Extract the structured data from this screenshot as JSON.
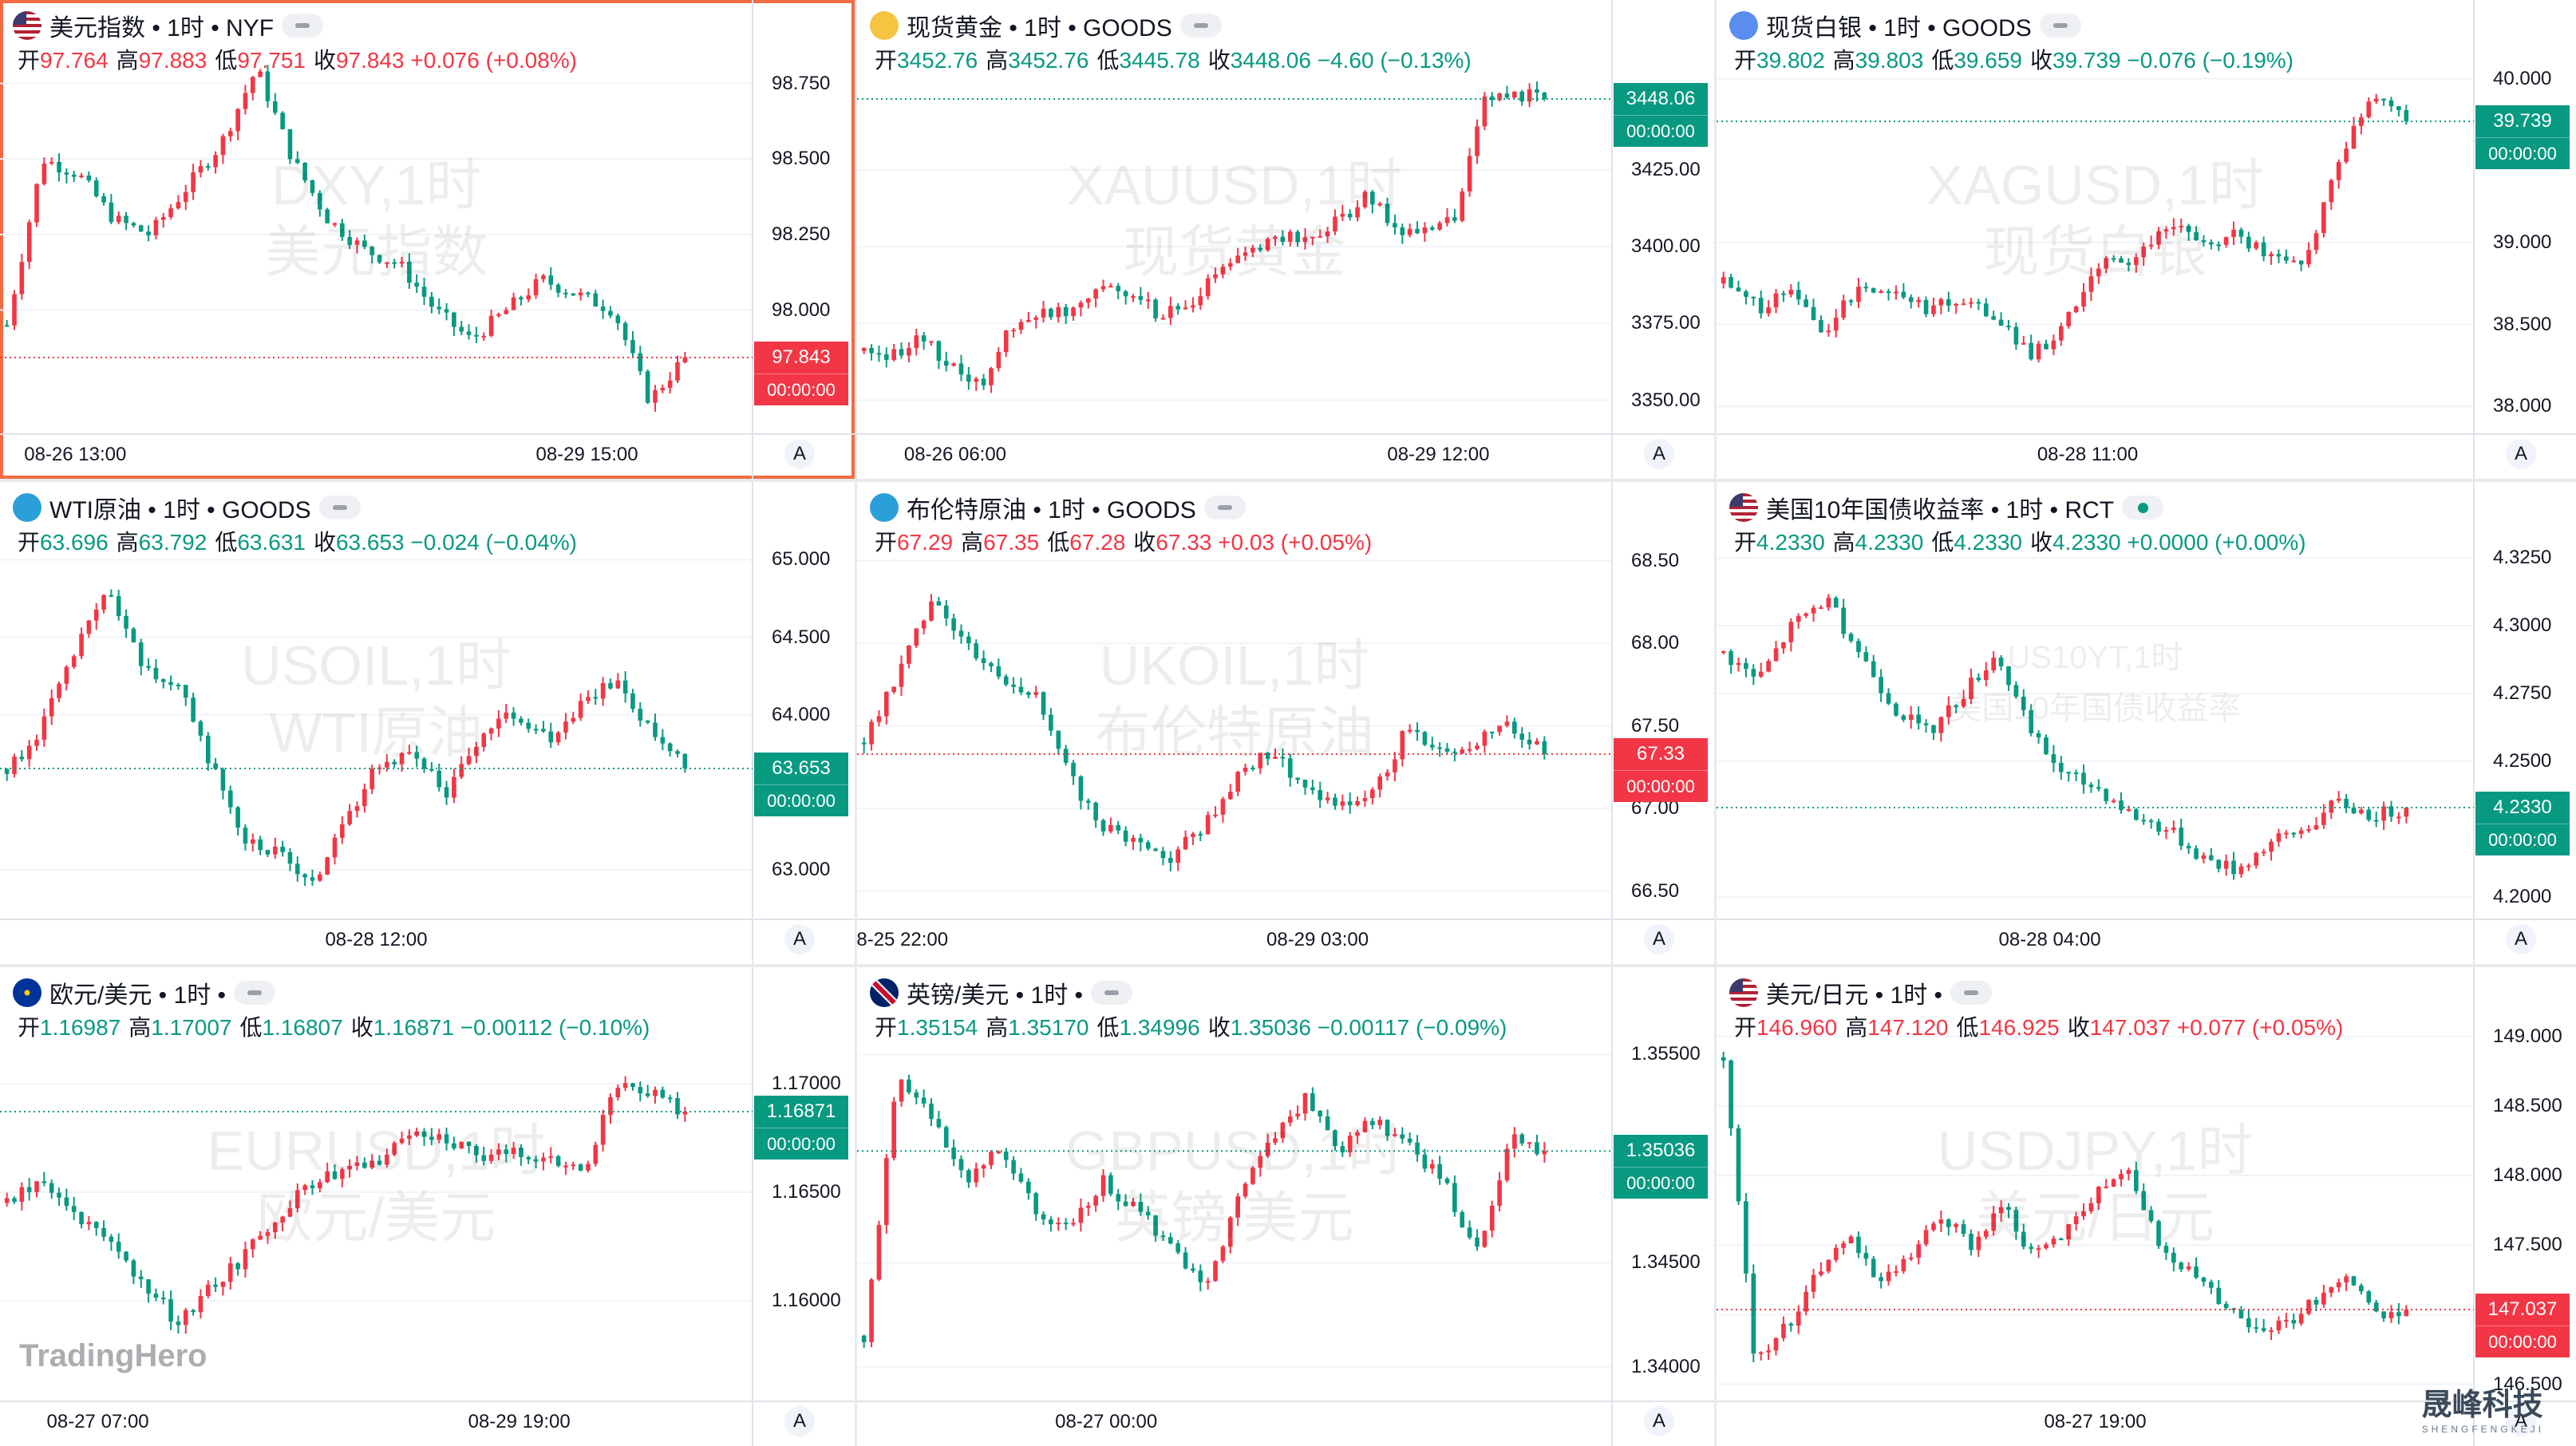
{
  "colors": {
    "up": "#f23645",
    "down": "#089981",
    "grid": "#f0f3fa",
    "axis": "#e0e3eb",
    "active_border": "#f26b43"
  },
  "brand": {
    "logo_text": "TradingHero",
    "corner_name": "晟峰科技",
    "corner_sub": "SHENGFENGKEJI"
  },
  "auto_label": "A",
  "panels": [
    {
      "id": "dxy",
      "title": "美元指数 • 1时 • NYF",
      "flag": "us",
      "status": "idle",
      "active": true,
      "ohlc": [
        {
          "l": "开",
          "v": "97.764",
          "d": "up"
        },
        {
          "l": "高",
          "v": "97.883",
          "d": "up"
        },
        {
          "l": "低",
          "v": "97.751",
          "d": "up"
        },
        {
          "l": "收",
          "v": "97.843",
          "d": "up"
        },
        {
          "l": "",
          "v": "+0.076 (+0.08%)",
          "d": "up"
        }
      ],
      "watermark": [
        "DXY,1时",
        "美元指数"
      ],
      "yticks": [
        "98.750",
        "98.500",
        "98.250",
        "98.000"
      ],
      "ytick_vals": [
        98.75,
        98.5,
        98.25,
        98.0
      ],
      "ymin": 97.6,
      "ymax": 98.82,
      "price_tag": {
        "price": "97.843",
        "time": "00:00:00",
        "dir": "up",
        "value": 97.843
      },
      "xlabels": [
        {
          "t": "08-26 13:00",
          "f": 0.1
        },
        {
          "t": "08-29 15:00",
          "f": 0.78
        }
      ],
      "series_seed": [
        97.95,
        98.5,
        98.45,
        98.3,
        98.25,
        98.4,
        98.55,
        98.8,
        98.5,
        98.3,
        98.2,
        98.15,
        98.0,
        97.9,
        98.0,
        98.1,
        98.05,
        98.0,
        97.7,
        97.843
      ],
      "show_logo": false
    },
    {
      "id": "xau",
      "title": "现货黄金 • 1时 • GOODS",
      "flag": "gold",
      "status": "idle",
      "active": false,
      "ohlc": [
        {
          "l": "开",
          "v": "3452.76",
          "d": "dn"
        },
        {
          "l": "高",
          "v": "3452.76",
          "d": "dn"
        },
        {
          "l": "低",
          "v": "3445.78",
          "d": "dn"
        },
        {
          "l": "收",
          "v": "3448.06",
          "d": "dn"
        },
        {
          "l": "",
          "v": "−4.60 (−0.13%)",
          "d": "dn"
        }
      ],
      "watermark": [
        "XAUUSD,1时",
        "现货黄金"
      ],
      "yticks": [
        "3425.00",
        "3400.00",
        "3375.00",
        "3350.00"
      ],
      "ytick_vals": [
        3425,
        3400,
        3375,
        3350
      ],
      "ymin": 3340,
      "ymax": 3460,
      "price_tag": {
        "price": "3448.06",
        "time": "00:00:00",
        "dir": "dn",
        "value": 3448.06
      },
      "xlabels": [
        {
          "t": "08-26 06:00",
          "f": 0.13
        },
        {
          "t": "08-29 12:00",
          "f": 0.77
        }
      ],
      "series_seed": [
        3366,
        3365,
        3370,
        3360,
        3355,
        3375,
        3378,
        3380,
        3388,
        3385,
        3378,
        3380,
        3392,
        3398,
        3404,
        3402,
        3408,
        3416,
        3406,
        3404,
        3410,
        3448,
        3450,
        3448.06
      ],
      "show_logo": false
    },
    {
      "id": "xag",
      "title": "现货白银 • 1时 • GOODS",
      "flag": "silver",
      "status": "idle",
      "active": false,
      "ohlc": [
        {
          "l": "开",
          "v": "39.802",
          "d": "dn"
        },
        {
          "l": "高",
          "v": "39.803",
          "d": "dn"
        },
        {
          "l": "低",
          "v": "39.659",
          "d": "dn"
        },
        {
          "l": "收",
          "v": "39.739",
          "d": "dn"
        },
        {
          "l": "",
          "v": "−0.076 (−0.19%)",
          "d": "dn"
        }
      ],
      "watermark": [
        "XAGUSD,1时",
        "现货白银"
      ],
      "yticks": [
        "40.000",
        "39.000",
        "38.500",
        "38.000"
      ],
      "ytick_vals": [
        40,
        39,
        38.5,
        38
      ],
      "ymin": 37.85,
      "ymax": 40.1,
      "price_tag": {
        "price": "39.739",
        "time": "00:00:00",
        "dir": "dn",
        "value": 39.739
      },
      "xlabels": [
        {
          "t": "08-28 11:00",
          "f": 0.49
        }
      ],
      "series_seed": [
        38.75,
        38.6,
        38.7,
        38.45,
        38.75,
        38.7,
        38.6,
        38.65,
        38.55,
        38.3,
        38.5,
        38.85,
        38.9,
        39.1,
        39.0,
        39.05,
        38.9,
        38.85,
        39.5,
        39.9,
        39.739
      ],
      "show_logo": false
    },
    {
      "id": "usoil",
      "title": "WTI原油 • 1时 • GOODS",
      "flag": "oil",
      "status": "idle",
      "active": false,
      "ohlc": [
        {
          "l": "开",
          "v": "63.696",
          "d": "dn"
        },
        {
          "l": "高",
          "v": "63.792",
          "d": "dn"
        },
        {
          "l": "低",
          "v": "63.631",
          "d": "dn"
        },
        {
          "l": "收",
          "v": "63.653",
          "d": "dn"
        },
        {
          "l": "",
          "v": "−0.024 (−0.04%)",
          "d": "dn"
        }
      ],
      "watermark": [
        "USOIL,1时",
        "WTI原油"
      ],
      "yticks": [
        "65.000",
        "64.500",
        "64.000",
        "63.000"
      ],
      "ytick_vals": [
        65,
        64.5,
        64,
        63
      ],
      "ymin": 62.7,
      "ymax": 65.1,
      "price_tag": {
        "price": "63.653",
        "time": "00:00:00",
        "dir": "dn",
        "value": 63.653
      },
      "xlabels": [
        {
          "t": "08-28 12:00",
          "f": 0.5
        }
      ],
      "series_seed": [
        63.65,
        63.9,
        64.4,
        64.8,
        64.3,
        64.2,
        63.7,
        63.2,
        63.1,
        62.9,
        63.3,
        63.7,
        63.75,
        63.5,
        63.9,
        64.0,
        63.85,
        64.1,
        64.2,
        63.9,
        63.653
      ],
      "show_logo": false
    },
    {
      "id": "ukoil",
      "title": "布伦特原油 • 1时 • GOODS",
      "flag": "oil",
      "status": "idle",
      "active": false,
      "ohlc": [
        {
          "l": "开",
          "v": "67.29",
          "d": "up"
        },
        {
          "l": "高",
          "v": "67.35",
          "d": "up"
        },
        {
          "l": "低",
          "v": "67.28",
          "d": "up"
        },
        {
          "l": "收",
          "v": "67.33",
          "d": "up"
        },
        {
          "l": "",
          "v": "+0.03 (+0.05%)",
          "d": "up"
        }
      ],
      "watermark": [
        "UKOIL,1时",
        "布伦特原油"
      ],
      "yticks": [
        "68.50",
        "68.00",
        "67.50",
        "67.00",
        "66.50"
      ],
      "ytick_vals": [
        68.5,
        68,
        67.5,
        67,
        66.5
      ],
      "ymin": 66.35,
      "ymax": 68.6,
      "price_tag": {
        "price": "67.33",
        "time": "00:00:00",
        "dir": "up",
        "value": 67.33
      },
      "xlabels": [
        {
          "t": "8-25 22:00",
          "f": 0.06
        },
        {
          "t": "08-29 03:00",
          "f": 0.61
        }
      ],
      "series_seed": [
        67.4,
        67.8,
        68.3,
        68.0,
        67.8,
        67.7,
        67.2,
        66.9,
        66.8,
        66.7,
        66.9,
        67.2,
        67.35,
        67.1,
        67.0,
        67.1,
        67.5,
        67.35,
        67.4,
        67.5,
        67.33
      ],
      "show_logo": false
    },
    {
      "id": "us10y",
      "title": "美国10年国债收益率 • 1时 • RCT",
      "flag": "us",
      "status": "live",
      "active": false,
      "ohlc": [
        {
          "l": "开",
          "v": "4.2330",
          "d": "dn"
        },
        {
          "l": "高",
          "v": "4.2330",
          "d": "dn"
        },
        {
          "l": "低",
          "v": "4.2330",
          "d": "dn"
        },
        {
          "l": "收",
          "v": "4.2330",
          "d": "dn"
        },
        {
          "l": "",
          "v": "+0.0000 (+0.00%)",
          "d": "dn"
        }
      ],
      "watermark": [
        "US10YT,1时",
        "美国10年国债收益率"
      ],
      "yticks": [
        "4.3250",
        "4.3000",
        "4.2750",
        "4.2500",
        "4.2000"
      ],
      "ytick_vals": [
        4.325,
        4.3,
        4.275,
        4.25,
        4.2
      ],
      "ymin": 4.193,
      "ymax": 4.33,
      "price_tag": {
        "price": "4.2330",
        "time": "00:00:00",
        "dir": "dn",
        "value": 4.233
      },
      "xlabels": [
        {
          "t": "08-28 04:00",
          "f": 0.44
        }
      ],
      "series_seed": [
        4.29,
        4.28,
        4.3,
        4.31,
        4.29,
        4.27,
        4.26,
        4.275,
        4.29,
        4.26,
        4.245,
        4.24,
        4.23,
        4.225,
        4.215,
        4.21,
        4.22,
        4.225,
        4.235,
        4.23,
        4.233
      ],
      "show_logo": false
    },
    {
      "id": "eurusd",
      "title": "欧元/美元 • 1时 •",
      "flag": "eu",
      "status": "idle",
      "active": false,
      "ohlc": [
        {
          "l": "开",
          "v": "1.16987",
          "d": "dn"
        },
        {
          "l": "高",
          "v": "1.17007",
          "d": "dn"
        },
        {
          "l": "低",
          "v": "1.16807",
          "d": "dn"
        },
        {
          "l": "收",
          "v": "1.16871",
          "d": "dn"
        },
        {
          "l": "",
          "v": "−0.00112 (−0.10%)",
          "d": "dn"
        }
      ],
      "watermark": [
        "EURUSD,1时",
        "欧元/美元"
      ],
      "yticks": [
        "1.17000",
        "1.16500",
        "1.16000"
      ],
      "ytick_vals": [
        1.17,
        1.165,
        1.16
      ],
      "ymin": 1.1555,
      "ymax": 1.1725,
      "price_tag": {
        "price": "1.16871",
        "time": "00:00:00",
        "dir": "dn",
        "value": 1.16871
      },
      "xlabels": [
        {
          "t": "08-27 07:00",
          "f": 0.13
        },
        {
          "t": "08-29 19:00",
          "f": 0.69
        }
      ],
      "series_seed": [
        1.1645,
        1.1655,
        1.164,
        1.1625,
        1.161,
        1.159,
        1.1605,
        1.162,
        1.164,
        1.1655,
        1.166,
        1.1665,
        1.168,
        1.1675,
        1.1665,
        1.167,
        1.1665,
        1.166,
        1.17,
        1.1695,
        1.16871
      ],
      "show_logo": true
    },
    {
      "id": "gbpusd",
      "title": "英镑/美元 • 1时 •",
      "flag": "uk",
      "status": "idle",
      "active": false,
      "ohlc": [
        {
          "l": "开",
          "v": "1.35154",
          "d": "dn"
        },
        {
          "l": "高",
          "v": "1.35170",
          "d": "dn"
        },
        {
          "l": "低",
          "v": "1.34996",
          "d": "dn"
        },
        {
          "l": "收",
          "v": "1.35036",
          "d": "dn"
        },
        {
          "l": "",
          "v": "−0.00117 (−0.09%)",
          "d": "dn"
        }
      ],
      "watermark": [
        "GBPUSD,1时",
        "英镑/美元"
      ],
      "yticks": [
        "1.35500",
        "1.34500",
        "1.34000"
      ],
      "ytick_vals": [
        1.355,
        1.345,
        1.34
      ],
      "ymin": 1.3385,
      "ymax": 1.3562,
      "price_tag": {
        "price": "1.35036",
        "time": "00:00:00",
        "dir": "dn",
        "value": 1.35036
      },
      "xlabels": [
        {
          "t": "08-27 00:00",
          "f": 0.33
        }
      ],
      "series_seed": [
        1.3415,
        1.354,
        1.352,
        1.349,
        1.3505,
        1.3475,
        1.3465,
        1.349,
        1.3475,
        1.346,
        1.3435,
        1.348,
        1.351,
        1.353,
        1.3505,
        1.352,
        1.3505,
        1.349,
        1.3455,
        1.351,
        1.35036
      ],
      "show_logo": false
    },
    {
      "id": "usdjpy",
      "title": "美元/日元 • 1时 •",
      "flag": "us",
      "status": "idle",
      "active": false,
      "ohlc": [
        {
          "l": "开",
          "v": "146.960",
          "d": "up"
        },
        {
          "l": "高",
          "v": "147.120",
          "d": "up"
        },
        {
          "l": "低",
          "v": "146.925",
          "d": "up"
        },
        {
          "l": "收",
          "v": "147.037",
          "d": "up"
        },
        {
          "l": "",
          "v": "+0.077 (+0.05%)",
          "d": "up"
        }
      ],
      "watermark": [
        "USDJPY,1时",
        "美元/日元"
      ],
      "yticks": [
        "149.000",
        "148.500",
        "148.000",
        "147.500",
        "147.000",
        "146.500"
      ],
      "ytick_vals": [
        149,
        148.5,
        148,
        147.5,
        147,
        146.5
      ],
      "ymin": 146.4,
      "ymax": 149.05,
      "price_tag": {
        "price": "147.037",
        "time": "00:00:00",
        "dir": "up",
        "value": 147.037
      },
      "xlabels": [
        {
          "t": "08-27 19:00",
          "f": 0.5
        }
      ],
      "series_seed": [
        148.85,
        146.7,
        146.9,
        147.3,
        147.6,
        147.2,
        147.4,
        147.7,
        147.5,
        147.8,
        147.4,
        147.6,
        147.9,
        148.1,
        147.5,
        147.3,
        147.1,
        146.95,
        146.9,
        147.1,
        147.3,
        147.0,
        147.037
      ],
      "show_logo": false
    }
  ]
}
